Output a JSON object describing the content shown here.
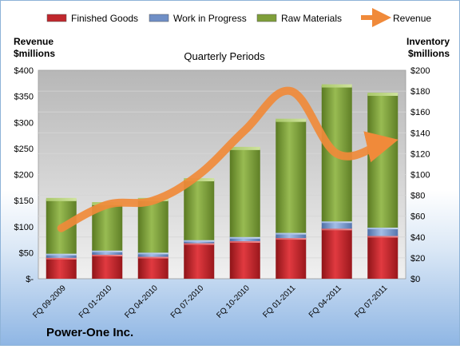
{
  "chart_data": {
    "type": "bar",
    "title": "Quarterly Periods",
    "company": "Power-One Inc.",
    "left_axis": {
      "label_line1": "Revenue",
      "label_line2": "$millions",
      "ylim": [
        0,
        400
      ],
      "ticks": [
        "$-",
        "$50",
        "$100",
        "$150",
        "$200",
        "$250",
        "$300",
        "$350",
        "$400"
      ]
    },
    "right_axis": {
      "label_line1": "Inventory",
      "label_line2": "$millions",
      "ylim": [
        0,
        200
      ],
      "ticks": [
        "$0",
        "$20",
        "$40",
        "$60",
        "$80",
        "$100",
        "$120",
        "$140",
        "$160",
        "$180",
        "$200"
      ]
    },
    "categories": [
      "FQ 09-2009",
      "FQ 01-2010",
      "FQ 04-2010",
      "FQ 07-2010",
      "FQ 10-2010",
      "FQ 01-2011",
      "FQ 04-2011",
      "FQ 07-2011"
    ],
    "stacked": true,
    "series": [
      {
        "name": "Finished Goods",
        "axis": "right",
        "color": "#c0272d",
        "values": [
          20,
          23,
          21,
          34,
          36,
          39,
          48,
          41
        ]
      },
      {
        "name": "Work in Progress",
        "axis": "right",
        "color": "#6f8fc6",
        "values": [
          4,
          4,
          4,
          3,
          4,
          5,
          7,
          8
        ]
      },
      {
        "name": "Raw Materials",
        "axis": "right",
        "color": "#7f9f3a",
        "values": [
          52,
          45,
          51,
          58,
          85,
          108,
          130,
          128
        ]
      },
      {
        "name": "Revenue",
        "axis": "left",
        "type": "line",
        "color": "#f08a3a",
        "values": [
          97,
          142,
          150,
          200,
          285,
          360,
          240,
          260
        ]
      }
    ],
    "legend": "top",
    "grid": true
  }
}
